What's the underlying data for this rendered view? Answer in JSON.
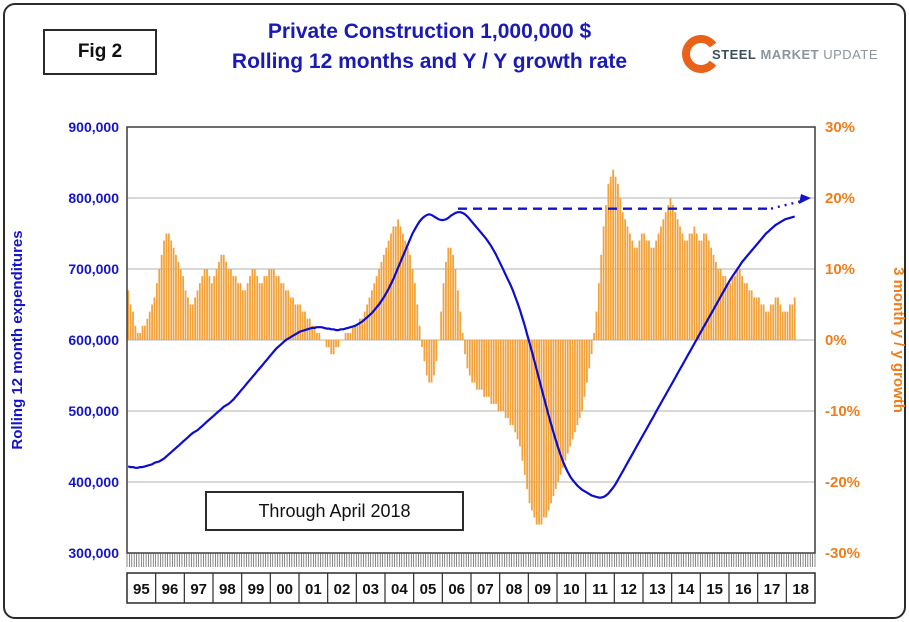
{
  "header": {
    "fig_label": "Fig 2",
    "title_line1": "Private Construction 1,000,000 $",
    "title_line2": "Rolling 12 months and Y / Y growth rate",
    "logo": {
      "word1": "STEEL",
      "word2": "MARKET",
      "word3": "UPDATE",
      "accent_color": "#E8621A"
    }
  },
  "annotation": {
    "text": "Through April 2018"
  },
  "arrow": {
    "style": "dashed blue projection",
    "level_right_axis_pct": 18.5,
    "points_to_pct": 20
  },
  "chart_data": {
    "type": "combo",
    "title": "Private Construction 1,000,000 $ — Rolling 12 months and Y / Y growth rate",
    "x_start": "1995-01",
    "x_end": "2018-04",
    "x_labels": [
      "95",
      "96",
      "97",
      "98",
      "99",
      "00",
      "01",
      "02",
      "03",
      "04",
      "05",
      "06",
      "07",
      "08",
      "09",
      "10",
      "11",
      "12",
      "13",
      "14",
      "15",
      "16",
      "17",
      "18"
    ],
    "left_axis": {
      "title": "Rolling 12 month expenditures",
      "color": "#1414c8",
      "min": 300,
      "max": 900,
      "tick_labels": [
        "900,000",
        "800,000",
        "700,000",
        "600,000",
        "500,000",
        "400,000",
        "300,000"
      ],
      "scale_note": "series values are in thousands; multiply by 1,000 to match tick labels"
    },
    "right_axis": {
      "title": "3 month y / y growth",
      "color": "#f07d1a",
      "min": -30,
      "max": 30,
      "tick_labels": [
        "30%",
        "20%",
        "10%",
        "0%",
        "-10%",
        "-20%",
        "-30%"
      ]
    },
    "grid": true,
    "legend": "none",
    "series": [
      {
        "name": "Rolling 12 month expenditures",
        "type": "line",
        "axis": "left",
        "color": "#0d0dcf",
        "values": [
          422,
          421,
          421,
          420,
          420,
          421,
          421,
          422,
          423,
          424,
          425,
          427,
          428,
          429,
          431,
          433,
          436,
          439,
          442,
          445,
          448,
          451,
          454,
          457,
          460,
          463,
          466,
          469,
          471,
          473,
          476,
          479,
          482,
          485,
          488,
          491,
          494,
          497,
          500,
          503,
          506,
          508,
          510,
          513,
          516,
          520,
          524,
          528,
          532,
          536,
          540,
          544,
          548,
          552,
          556,
          560,
          564,
          568,
          572,
          576,
          580,
          584,
          588,
          591,
          594,
          597,
          600,
          602,
          604,
          606,
          608,
          610,
          612,
          613,
          614,
          615,
          616,
          617,
          617,
          618,
          618,
          618,
          617,
          616,
          616,
          615,
          615,
          614,
          614,
          615,
          615,
          616,
          617,
          618,
          619,
          620,
          622,
          624,
          626,
          629,
          632,
          635,
          638,
          642,
          646,
          650,
          655,
          660,
          666,
          672,
          679,
          686,
          694,
          702,
          710,
          718,
          726,
          734,
          742,
          750,
          756,
          762,
          767,
          771,
          774,
          776,
          777,
          776,
          774,
          772,
          770,
          769,
          769,
          770,
          772,
          775,
          777,
          779,
          780,
          780,
          779,
          777,
          774,
          770,
          766,
          762,
          758,
          754,
          750,
          746,
          742,
          737,
          732,
          726,
          720,
          713,
          706,
          699,
          692,
          685,
          678,
          670,
          661,
          652,
          642,
          631,
          620,
          608,
          596,
          584,
          571,
          558,
          545,
          532,
          519,
          506,
          494,
          482,
          470,
          459,
          448,
          438,
          429,
          421,
          414,
          408,
          403,
          399,
          395,
          392,
          389,
          387,
          385,
          383,
          381,
          380,
          379,
          378,
          378,
          379,
          381,
          384,
          388,
          392,
          397,
          403,
          409,
          415,
          421,
          427,
          433,
          439,
          445,
          451,
          457,
          463,
          469,
          475,
          481,
          487,
          493,
          499,
          505,
          511,
          517,
          523,
          529,
          535,
          541,
          547,
          553,
          559,
          565,
          571,
          577,
          583,
          589,
          595,
          601,
          607,
          613,
          619,
          625,
          631,
          637,
          643,
          649,
          655,
          661,
          667,
          673,
          679,
          685,
          690,
          695,
          700,
          705,
          710,
          714,
          718,
          722,
          726,
          730,
          734,
          738,
          742,
          746,
          750,
          753,
          756,
          759,
          762,
          764,
          766,
          768,
          770,
          771,
          772,
          773,
          774
        ]
      },
      {
        "name": "3 month y / y growth",
        "type": "bar",
        "axis": "right",
        "color": "#f2a23b",
        "values": [
          7,
          5,
          4,
          2,
          1,
          1,
          2,
          2,
          3,
          4,
          5,
          6,
          8,
          10,
          12,
          14,
          15,
          15,
          14,
          13,
          12,
          11,
          10,
          9,
          7,
          6,
          5,
          5,
          6,
          7,
          8,
          9,
          10,
          10,
          9,
          8,
          9,
          10,
          11,
          12,
          12,
          11,
          10,
          10,
          9,
          9,
          8,
          8,
          7,
          7,
          8,
          9,
          10,
          10,
          9,
          8,
          8,
          9,
          9,
          10,
          10,
          10,
          9,
          9,
          8,
          8,
          7,
          7,
          6,
          6,
          5,
          5,
          5,
          4,
          4,
          3,
          3,
          2,
          2,
          1,
          1,
          0,
          0,
          -1,
          -1,
          -2,
          -2,
          -1,
          -1,
          0,
          0,
          1,
          1,
          1,
          2,
          2,
          2,
          3,
          3,
          4,
          5,
          6,
          7,
          8,
          9,
          10,
          11,
          12,
          13,
          14,
          15,
          16,
          16,
          17,
          16,
          15,
          14,
          13,
          12,
          10,
          8,
          5,
          2,
          -1,
          -3,
          -5,
          -6,
          -6,
          -5,
          -3,
          0,
          4,
          8,
          11,
          13,
          13,
          12,
          10,
          7,
          4,
          1,
          -2,
          -4,
          -5,
          -6,
          -6,
          -7,
          -7,
          -7,
          -8,
          -8,
          -8,
          -9,
          -9,
          -9,
          -10,
          -10,
          -10,
          -11,
          -11,
          -12,
          -12,
          -13,
          -14,
          -15,
          -17,
          -19,
          -21,
          -23,
          -24,
          -25,
          -26,
          -26,
          -26,
          -25,
          -25,
          -24,
          -23,
          -22,
          -21,
          -20,
          -19,
          -18,
          -17,
          -16,
          -15,
          -14,
          -13,
          -12,
          -11,
          -10,
          -8,
          -6,
          -4,
          -2,
          1,
          4,
          8,
          12,
          16,
          19,
          22,
          23,
          24,
          23,
          22,
          20,
          18,
          17,
          16,
          15,
          14,
          13,
          13,
          14,
          15,
          15,
          14,
          14,
          13,
          13,
          14,
          15,
          16,
          17,
          18,
          19,
          20,
          19,
          18,
          17,
          16,
          15,
          14,
          14,
          15,
          15,
          16,
          15,
          14,
          14,
          15,
          15,
          14,
          13,
          12,
          11,
          10,
          10,
          9,
          9,
          8,
          8,
          9,
          9,
          10,
          10,
          9,
          8,
          8,
          7,
          7,
          6,
          6,
          6,
          5,
          5,
          4,
          4,
          5,
          5,
          6,
          6,
          5,
          4,
          4,
          4,
          5,
          5,
          6
        ]
      }
    ]
  }
}
